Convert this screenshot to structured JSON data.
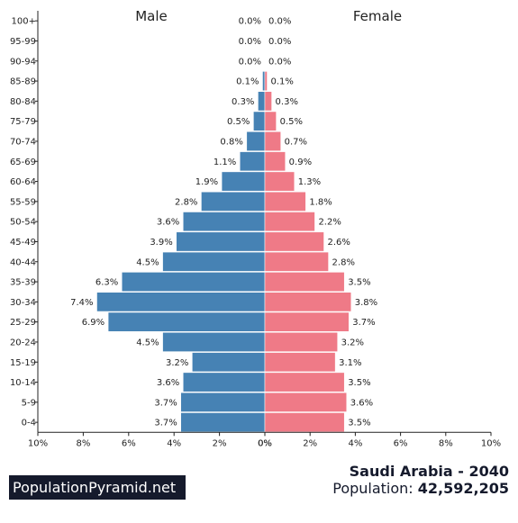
{
  "chart_data": {
    "type": "bar",
    "orientation": "horizontal-population-pyramid",
    "categories": [
      "100+",
      "95-99",
      "90-94",
      "85-89",
      "80-84",
      "75-79",
      "70-74",
      "65-69",
      "60-64",
      "55-59",
      "50-54",
      "45-49",
      "40-44",
      "35-39",
      "30-34",
      "25-29",
      "20-24",
      "15-19",
      "10-14",
      "5-9",
      "0-4"
    ],
    "series": [
      {
        "name": "Male",
        "color": "#4682b4",
        "values": [
          0.0,
          0.0,
          0.0,
          0.1,
          0.3,
          0.5,
          0.8,
          1.1,
          1.9,
          2.8,
          3.6,
          3.9,
          4.5,
          6.3,
          7.4,
          6.9,
          4.5,
          3.2,
          3.6,
          3.7,
          3.7
        ],
        "labels": [
          "0.0%",
          "0.0%",
          "0.0%",
          "0.1%",
          "0.3%",
          "0.5%",
          "0.8%",
          "1.1%",
          "1.9%",
          "2.8%",
          "3.6%",
          "3.9%",
          "4.5%",
          "6.3%",
          "7.4%",
          "6.9%",
          "4.5%",
          "3.2%",
          "3.6%",
          "3.7%",
          "3.7%"
        ]
      },
      {
        "name": "Female",
        "color": "#ef7a87",
        "values": [
          0.0,
          0.0,
          0.0,
          0.1,
          0.3,
          0.5,
          0.7,
          0.9,
          1.3,
          1.8,
          2.2,
          2.6,
          2.8,
          3.5,
          3.8,
          3.7,
          3.2,
          3.1,
          3.5,
          3.6,
          3.5
        ],
        "labels": [
          "0.0%",
          "0.0%",
          "0.0%",
          "0.1%",
          "0.3%",
          "0.5%",
          "0.7%",
          "0.9%",
          "1.3%",
          "1.8%",
          "2.2%",
          "2.6%",
          "2.8%",
          "3.5%",
          "3.8%",
          "3.7%",
          "3.2%",
          "3.1%",
          "3.5%",
          "3.6%",
          "3.5%"
        ]
      }
    ],
    "xlim": [
      0,
      10
    ],
    "left_ticks": [
      "10%",
      "8%",
      "6%",
      "4%",
      "2%",
      "0%"
    ],
    "right_ticks": [
      "0%",
      "2%",
      "4%",
      "6%",
      "8%",
      "10%"
    ],
    "grid": false
  },
  "brand": "PopulationPyramid.net",
  "country_year": "Saudi Arabia - 2040",
  "population_label": "Population:",
  "population_value": "42,592,205"
}
